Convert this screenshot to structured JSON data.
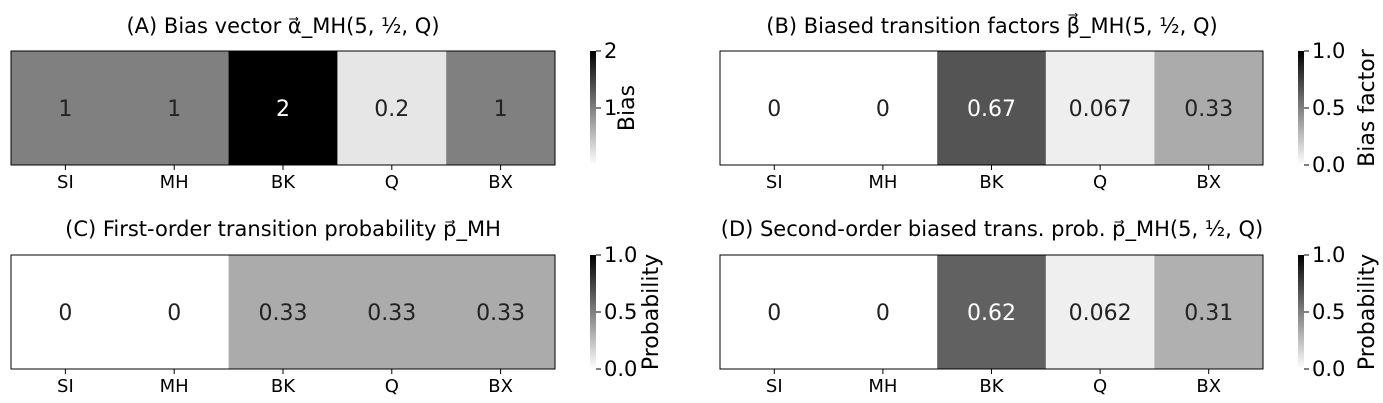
{
  "chart_data": [
    {
      "type": "heatmap",
      "title": "(A) Bias vector α⃗_MH(5, ½, Q)",
      "categories": [
        "SI",
        "MH",
        "BK",
        "Q",
        "BX"
      ],
      "values": [
        1,
        1,
        2,
        0.2,
        1
      ],
      "cell_labels": [
        "1",
        "1",
        "2",
        "0.2",
        "1"
      ],
      "colorbar": {
        "label": "Bias",
        "range": [
          0,
          2
        ],
        "ticks": [
          1,
          2
        ],
        "tick_labels": [
          "1",
          "2"
        ]
      },
      "colormap": "white-to-black"
    },
    {
      "type": "heatmap",
      "title": "(B) Biased transition factors β⃗_MH(5, ½, Q)",
      "categories": [
        "SI",
        "MH",
        "BK",
        "Q",
        "BX"
      ],
      "values": [
        0,
        0,
        0.67,
        0.067,
        0.33
      ],
      "cell_labels": [
        "0",
        "0",
        "0.67",
        "0.067",
        "0.33"
      ],
      "colorbar": {
        "label": "Bias factor",
        "range": [
          0,
          1
        ],
        "ticks": [
          0,
          0.5,
          1
        ],
        "tick_labels": [
          "0.0",
          "0.5",
          "1.0"
        ]
      },
      "colormap": "white-to-black"
    },
    {
      "type": "heatmap",
      "title": "(C) First-order transition probability p⃗_MH",
      "categories": [
        "SI",
        "MH",
        "BK",
        "Q",
        "BX"
      ],
      "values": [
        0,
        0,
        0.33,
        0.33,
        0.33
      ],
      "cell_labels": [
        "0",
        "0",
        "0.33",
        "0.33",
        "0.33"
      ],
      "colorbar": {
        "label": "Probability",
        "range": [
          0,
          1
        ],
        "ticks": [
          0,
          0.5,
          1
        ],
        "tick_labels": [
          "0.0",
          "0.5",
          "1.0"
        ]
      },
      "colormap": "white-to-black"
    },
    {
      "type": "heatmap",
      "title": "(D) Second-order biased trans. prob. p⃗_MH(5, ½, Q)",
      "categories": [
        "SI",
        "MH",
        "BK",
        "Q",
        "BX"
      ],
      "values": [
        0,
        0,
        0.62,
        0.062,
        0.31
      ],
      "cell_labels": [
        "0",
        "0",
        "0.62",
        "0.062",
        "0.31"
      ],
      "colorbar": {
        "label": "Probability",
        "range": [
          0,
          1
        ],
        "ticks": [
          0,
          0.5,
          1
        ],
        "tick_labels": [
          "0.0",
          "0.5",
          "1.0"
        ]
      },
      "colormap": "white-to-black"
    }
  ]
}
